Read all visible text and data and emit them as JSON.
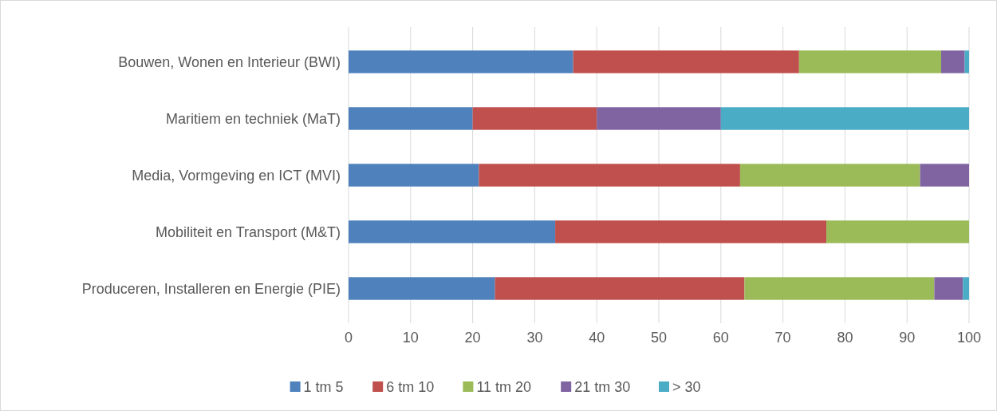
{
  "chart_data": {
    "type": "bar",
    "orientation": "horizontal",
    "stacked": true,
    "categories": [
      "Bouwen, Wonen en Interieur (BWI)",
      "Maritiem en techniek (MaT)",
      "Media, Vormgeving en ICT (MVI)",
      "Mobiliteit en Transport (M&T)",
      "Produceren, Installeren en Energie (PIE)"
    ],
    "series": [
      {
        "name": "1 tm 5",
        "color": "#4f81bd",
        "values": [
          36.2,
          20,
          21.0,
          33.3,
          23.6
        ]
      },
      {
        "name": "6 tm 10",
        "color": "#c0504d",
        "values": [
          36.4,
          20,
          42.1,
          43.7,
          40.2
        ]
      },
      {
        "name": "11 tm 20",
        "color": "#9bbb59",
        "values": [
          22.9,
          0,
          29.0,
          23.0,
          30.6
        ]
      },
      {
        "name": "21 tm 30",
        "color": "#8064a2",
        "values": [
          3.8,
          20,
          7.9,
          0,
          4.6
        ]
      },
      {
        "name": "> 30",
        "color": "#4bacc6",
        "values": [
          0.7,
          40,
          0,
          0,
          1.0
        ]
      }
    ],
    "xlim": [
      0,
      100
    ],
    "xticks": [
      0,
      10,
      20,
      30,
      40,
      50,
      60,
      70,
      80,
      90,
      100
    ],
    "grid": "x",
    "legend": "bottom"
  }
}
